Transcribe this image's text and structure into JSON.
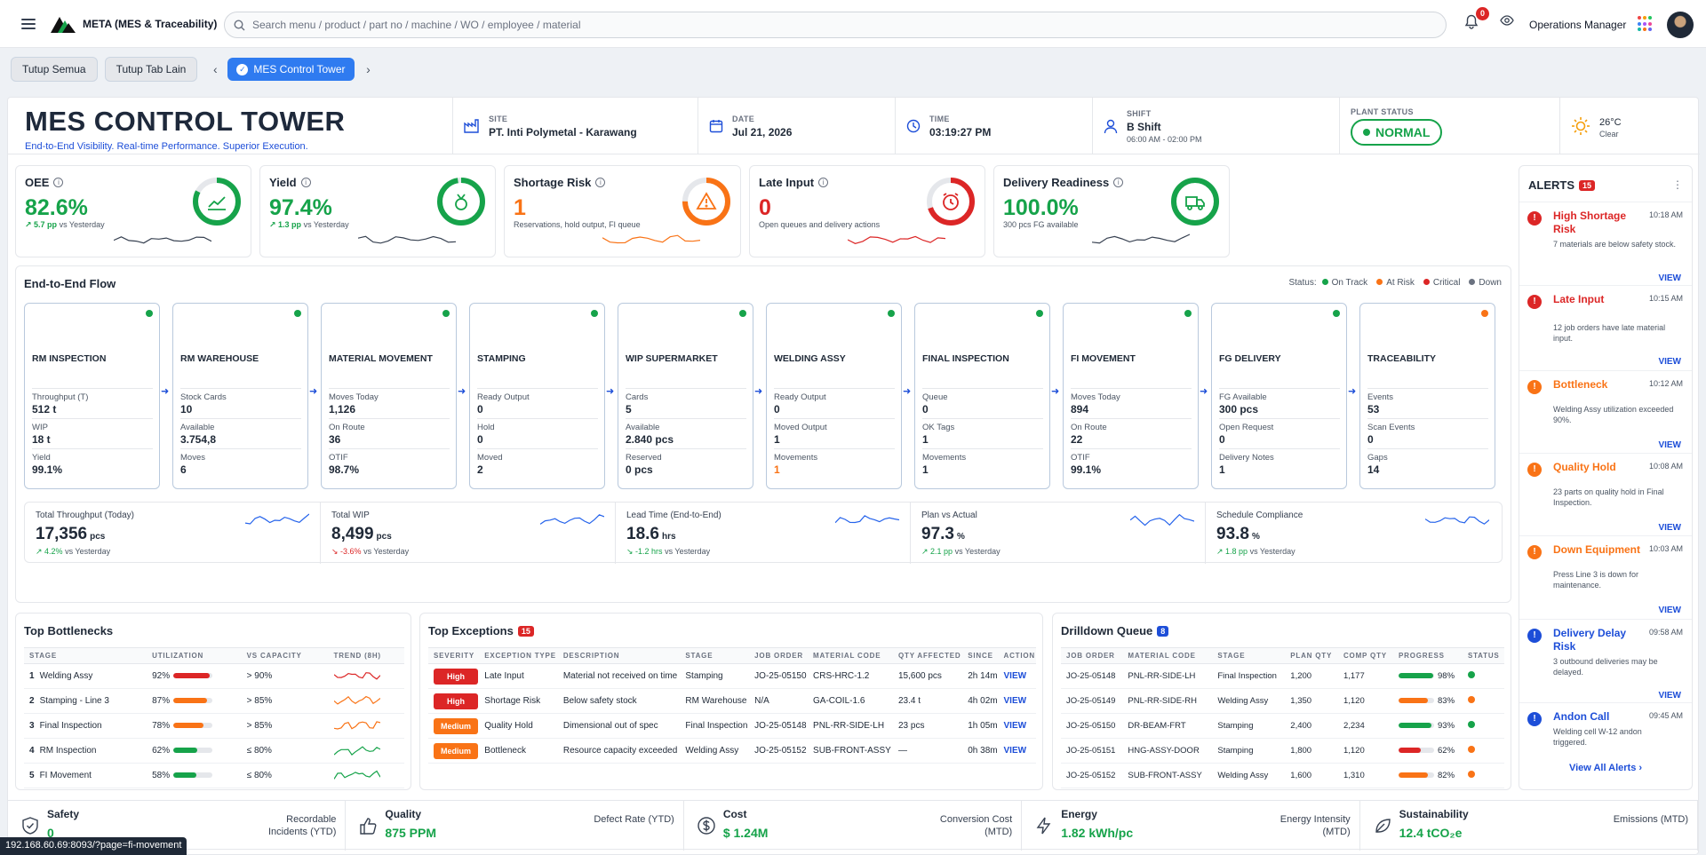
{
  "app": {
    "title": "META (MES & Traceability)",
    "search_placeholder": "Search menu / product / part no / machine / WO / employee / material",
    "notif_count": "0",
    "role": "Operations Manager"
  },
  "tabs": {
    "close_all": "Tutup Semua",
    "close_others": "Tutup Tab Lain",
    "active": "MES Control Tower"
  },
  "header": {
    "title": "MES CONTROL TOWER",
    "tagline": "End-to-End Visibility. Real-time Performance. Superior Execution.",
    "site_label": "SITE",
    "site": "PT. Inti Polymetal - Karawang",
    "date_label": "DATE",
    "date": "Jul 21, 2026",
    "time_label": "TIME",
    "time": "03:19:27 PM",
    "shift_label": "SHIFT",
    "shift": "B Shift",
    "shift_hours": "06:00 AM - 02:00 PM",
    "status_label": "PLANT STATUS",
    "status": "NORMAL",
    "temp": "26°C",
    "weather": "Clear"
  },
  "kpis": [
    {
      "title": "OEE",
      "value": "82.6%",
      "delta": "↗ 5.7 pp",
      "cmp": "vs Yesterday",
      "color": "#16a34a",
      "pct": 0.826,
      "icon": "trend-chart-icon"
    },
    {
      "title": "Yield",
      "value": "97.4%",
      "delta": "↗ 1.3 pp",
      "cmp": "vs Yesterday",
      "color": "#16a34a",
      "pct": 0.974,
      "icon": "medal-icon"
    },
    {
      "title": "Shortage Risk",
      "value": "1",
      "note": "Reservations, hold output, FI queue",
      "color": "#f97316",
      "pct": 0.75,
      "icon": "warning-icon"
    },
    {
      "title": "Late Input",
      "value": "0",
      "note": "Open queues and delivery actions",
      "color": "#dc2626",
      "pct": 0.7,
      "icon": "alarm-clock-icon"
    },
    {
      "title": "Delivery Readiness",
      "value": "100.0%",
      "note": "300 pcs FG available",
      "color": "#16a34a",
      "pct": 1.0,
      "icon": "truck-icon"
    }
  ],
  "flow": {
    "title": "End-to-End Flow",
    "legend_label": "Status:",
    "legend": [
      {
        "label": "On Track",
        "color": "#16a34a"
      },
      {
        "label": "At Risk",
        "color": "#f97316"
      },
      {
        "label": "Critical",
        "color": "#dc2626"
      },
      {
        "label": "Down",
        "color": "#6b7280"
      }
    ],
    "stages": [
      {
        "name": "RM INSPECTION",
        "status": "#16a34a",
        "m": [
          [
            "Throughput (T)",
            "512 t"
          ],
          [
            "WIP",
            "18 t"
          ],
          [
            "Yield",
            "99.1%"
          ]
        ]
      },
      {
        "name": "RM WAREHOUSE",
        "status": "#16a34a",
        "m": [
          [
            "Stock Cards",
            "10"
          ],
          [
            "Available",
            "3.754,8"
          ],
          [
            "Moves",
            "6"
          ]
        ]
      },
      {
        "name": "MATERIAL MOVEMENT",
        "status": "#16a34a",
        "m": [
          [
            "Moves Today",
            "1,126"
          ],
          [
            "On Route",
            "36"
          ],
          [
            "OTIF",
            "98.7%"
          ]
        ]
      },
      {
        "name": "STAMPING",
        "status": "#16a34a",
        "m": [
          [
            "Ready Output",
            "0"
          ],
          [
            "Hold",
            "0"
          ],
          [
            "Moved",
            "2"
          ]
        ]
      },
      {
        "name": "WIP SUPERMARKET",
        "status": "#16a34a",
        "m": [
          [
            "Cards",
            "5"
          ],
          [
            "Available",
            "2.840 pcs"
          ],
          [
            "Reserved",
            "0 pcs"
          ]
        ]
      },
      {
        "name": "WELDING ASSY",
        "status": "#16a34a",
        "m": [
          [
            "Ready Output",
            "0"
          ],
          [
            "Moved Output",
            "1"
          ],
          [
            "Movements",
            "1"
          ]
        ]
      },
      {
        "name": "FINAL INSPECTION",
        "status": "#16a34a",
        "m": [
          [
            "Queue",
            "0"
          ],
          [
            "OK Tags",
            "1"
          ],
          [
            "Movements",
            "1"
          ]
        ]
      },
      {
        "name": "FI MOVEMENT",
        "status": "#16a34a",
        "m": [
          [
            "Moves Today",
            "894"
          ],
          [
            "On Route",
            "22"
          ],
          [
            "OTIF",
            "99.1%"
          ]
        ]
      },
      {
        "name": "FG DELIVERY",
        "status": "#16a34a",
        "m": [
          [
            "FG Available",
            "300 pcs"
          ],
          [
            "Open Request",
            "0"
          ],
          [
            "Delivery Notes",
            "1"
          ]
        ]
      },
      {
        "name": "TRACEABILITY",
        "status": "#f97316",
        "m": [
          [
            "Events",
            "53"
          ],
          [
            "Scan Events",
            "0"
          ],
          [
            "Gaps",
            "14"
          ]
        ]
      }
    ]
  },
  "summary": [
    {
      "label": "Total Throughput (Today)",
      "value": "17,356",
      "unit": "pcs",
      "delta": "↗ 4.2%",
      "cmp": "vs Yesterday",
      "dcolor": "#16a34a"
    },
    {
      "label": "Total WIP",
      "value": "8,499",
      "unit": "pcs",
      "delta": "↘ -3.6%",
      "cmp": "vs Yesterday",
      "dcolor": "#dc2626"
    },
    {
      "label": "Lead Time (End-to-End)",
      "value": "18.6",
      "unit": "hrs",
      "delta": "↘ -1.2 hrs",
      "cmp": "vs Yesterday",
      "dcolor": "#16a34a"
    },
    {
      "label": "Plan vs Actual",
      "value": "97.3",
      "unit": "%",
      "delta": "↗ 2.1 pp",
      "cmp": "vs Yesterday",
      "dcolor": "#16a34a"
    },
    {
      "label": "Schedule Compliance",
      "value": "93.8",
      "unit": "%",
      "delta": "↗ 1.8 pp",
      "cmp": "vs Yesterday",
      "dcolor": "#16a34a"
    }
  ],
  "bottlenecks": {
    "title": "Top Bottlenecks",
    "cols": [
      "STAGE",
      "UTILIZATION",
      "VS CAPACITY",
      "TREND (8H)"
    ],
    "rows": [
      {
        "n": "1",
        "stage": "Welding Assy",
        "util": "92%",
        "u": 0.92,
        "c": "#dc2626",
        "cap": "> 90%"
      },
      {
        "n": "2",
        "stage": "Stamping - Line 3",
        "util": "87%",
        "u": 0.87,
        "c": "#f97316",
        "cap": "> 85%"
      },
      {
        "n": "3",
        "stage": "Final Inspection",
        "util": "78%",
        "u": 0.78,
        "c": "#f97316",
        "cap": "> 85%"
      },
      {
        "n": "4",
        "stage": "RM Inspection",
        "util": "62%",
        "u": 0.62,
        "c": "#16a34a",
        "cap": "≤ 80%"
      },
      {
        "n": "5",
        "stage": "FI Movement",
        "util": "58%",
        "u": 0.58,
        "c": "#16a34a",
        "cap": "≤ 80%"
      }
    ]
  },
  "exceptions": {
    "title": "Top Exceptions",
    "count": "15",
    "cols": [
      "SEVERITY",
      "EXCEPTION TYPE",
      "DESCRIPTION",
      "STAGE",
      "JOB ORDER",
      "MATERIAL CODE",
      "QTY AFFECTED",
      "SINCE",
      "ACTION"
    ],
    "rows": [
      {
        "sev": "High",
        "c": "#dc2626",
        "type": "Late Input",
        "desc": "Material not received on time",
        "stage": "Stamping",
        "jo": "JO-25-05150",
        "mat": "CRS-HRC-1.2",
        "qty": "15,600 pcs",
        "since": "2h 14m",
        "act": "VIEW"
      },
      {
        "sev": "High",
        "c": "#dc2626",
        "type": "Shortage Risk",
        "desc": "Below safety stock",
        "stage": "RM Warehouse",
        "jo": "N/A",
        "mat": "GA-COIL-1.6",
        "qty": "23.4 t",
        "since": "4h 02m",
        "act": "VIEW"
      },
      {
        "sev": "Medium",
        "c": "#f97316",
        "type": "Quality Hold",
        "desc": "Dimensional out of spec",
        "stage": "Final Inspection",
        "jo": "JO-25-05148",
        "mat": "PNL-RR-SIDE-LH",
        "qty": "23 pcs",
        "since": "1h 05m",
        "act": "VIEW"
      },
      {
        "sev": "Medium",
        "c": "#f97316",
        "type": "Bottleneck",
        "desc": "Resource capacity exceeded",
        "stage": "Welding Assy",
        "jo": "JO-25-05152",
        "mat": "SUB-FRONT-ASSY",
        "qty": "—",
        "since": "0h 38m",
        "act": "VIEW"
      }
    ]
  },
  "queue": {
    "title": "Drilldown Queue",
    "count": "8",
    "cols": [
      "JOB ORDER",
      "MATERIAL CODE",
      "STAGE",
      "PLAN QTY",
      "COMP QTY",
      "PROGRESS",
      "STATUS"
    ],
    "rows": [
      {
        "jo": "JO-25-05148",
        "mat": "PNL-RR-SIDE-LH",
        "stage": "Final Inspection",
        "plan": "1,200",
        "comp": "1,177",
        "prog": "98%",
        "p": 0.98,
        "c": "#16a34a",
        "st": "#16a34a"
      },
      {
        "jo": "JO-25-05149",
        "mat": "PNL-RR-SIDE-RH",
        "stage": "Welding Assy",
        "plan": "1,350",
        "comp": "1,120",
        "prog": "83%",
        "p": 0.83,
        "c": "#f97316",
        "st": "#f97316"
      },
      {
        "jo": "JO-25-05150",
        "mat": "DR-BEAM-FRT",
        "stage": "Stamping",
        "plan": "2,400",
        "comp": "2,234",
        "prog": "93%",
        "p": 0.93,
        "c": "#16a34a",
        "st": "#16a34a"
      },
      {
        "jo": "JO-25-05151",
        "mat": "HNG-ASSY-DOOR",
        "stage": "Stamping",
        "plan": "1,800",
        "comp": "1,120",
        "prog": "62%",
        "p": 0.62,
        "c": "#dc2626",
        "st": "#f97316"
      },
      {
        "jo": "JO-25-05152",
        "mat": "SUB-FRONT-ASSY",
        "stage": "Welding Assy",
        "plan": "1,600",
        "comp": "1,310",
        "prog": "82%",
        "p": 0.82,
        "c": "#f97316",
        "st": "#f97316"
      }
    ]
  },
  "alerts": {
    "title": "ALERTS",
    "count": "15",
    "view_all": "View All Alerts ›",
    "items": [
      {
        "title": "High Shortage Risk",
        "time": "10:18 AM",
        "desc": "7 materials are below safety stock.",
        "c": "#dc2626",
        "tc": "#dc2626",
        "icon": "!",
        "view": "VIEW"
      },
      {
        "title": "Late Input",
        "time": "10:15 AM",
        "desc": "12 job orders have late material input.",
        "c": "#dc2626",
        "tc": "#dc2626",
        "icon": "!",
        "view": "VIEW"
      },
      {
        "title": "Bottleneck",
        "time": "10:12 AM",
        "desc": "Welding Assy utilization exceeded 90%.",
        "c": "#f97316",
        "tc": "#f97316",
        "icon": "!",
        "view": "VIEW"
      },
      {
        "title": "Quality Hold",
        "time": "10:08 AM",
        "desc": "23 parts on quality hold in Final Inspection.",
        "c": "#f97316",
        "tc": "#f97316",
        "icon": "!",
        "view": "VIEW"
      },
      {
        "title": "Down Equipment",
        "time": "10:03 AM",
        "desc": "Press Line 3 is down for maintenance.",
        "c": "#f97316",
        "tc": "#f97316",
        "icon": "!",
        "view": "VIEW"
      },
      {
        "title": "Delivery Delay Risk",
        "time": "09:58 AM",
        "desc": "3 outbound deliveries may be delayed.",
        "c": "#1d4ed8",
        "tc": "#1d4ed8",
        "icon": "!",
        "view": "VIEW"
      },
      {
        "title": "Andon Call",
        "time": "09:45 AM",
        "desc": "Welding cell W-12 andon triggered.",
        "c": "#1d4ed8",
        "tc": "#1d4ed8",
        "icon": "!",
        "view": ""
      }
    ]
  },
  "bottom": [
    {
      "label": "Safety",
      "value": "0",
      "right": "Recordable Incidents (YTD)",
      "icon": "shield-icon"
    },
    {
      "label": "Quality",
      "value": "875 PPM",
      "right": "Defect Rate (YTD)",
      "icon": "thumbs-up-icon"
    },
    {
      "label": "Cost",
      "value": "$ 1.24M",
      "right": "Conversion Cost (MTD)",
      "icon": "dollar-icon"
    },
    {
      "label": "Energy",
      "value": "1.82 kWh/pc",
      "right": "Energy Intensity (MTD)",
      "icon": "lightning-icon"
    },
    {
      "label": "Sustainability",
      "value": "12.4 tCO₂e",
      "right": "Emissions (MTD)",
      "icon": "leaf-icon"
    }
  ],
  "status_url": "192.168.60.69:8093/?page=fi-movement"
}
